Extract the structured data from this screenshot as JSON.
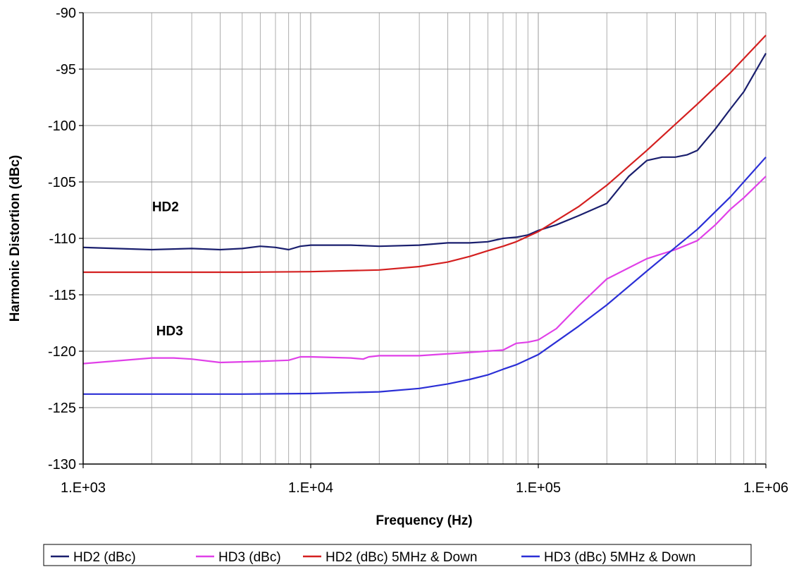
{
  "chart_data": {
    "type": "line",
    "xscale": "log",
    "xlabel": "Frequency (Hz)",
    "ylabel": "Harmonic Distortion (dBc)",
    "xlim": [
      1000,
      1000000
    ],
    "ylim": [
      -130,
      -90
    ],
    "y_ticks": [
      "-90",
      "-95",
      "-100",
      "-105",
      "-110",
      "-115",
      "-120",
      "-125",
      "-130"
    ],
    "y_tick_values": [
      -90,
      -95,
      -100,
      -105,
      -110,
      -115,
      -120,
      -125,
      -130
    ],
    "x_ticks": [
      "1.E+03",
      "1.E+04",
      "1.E+05",
      "1.E+06"
    ],
    "x_tick_values": [
      1000,
      10000,
      100000,
      1000000
    ],
    "grid": true,
    "legend_position": "bottom",
    "annotations": [
      {
        "text": "HD2",
        "x": 2300,
        "y": -107.6
      },
      {
        "text": "HD3",
        "x": 2400,
        "y": -118.6
      }
    ],
    "series": [
      {
        "name": "HD2 (dBc)",
        "color": "#1a1f6e",
        "x": [
          1000,
          2000,
          3000,
          4000,
          5000,
          6000,
          7000,
          8000,
          9000,
          10000,
          15000,
          20000,
          30000,
          40000,
          50000,
          60000,
          70000,
          80000,
          90000,
          100000,
          120000,
          150000,
          200000,
          250000,
          300000,
          350000,
          400000,
          450000,
          500000,
          600000,
          700000,
          800000,
          1000000
        ],
        "y": [
          -110.8,
          -111.0,
          -110.9,
          -111.0,
          -110.9,
          -110.7,
          -110.8,
          -111.0,
          -110.7,
          -110.6,
          -110.6,
          -110.7,
          -110.6,
          -110.4,
          -110.4,
          -110.3,
          -110.0,
          -109.9,
          -109.7,
          -109.3,
          -108.8,
          -108.0,
          -106.9,
          -104.5,
          -103.1,
          -102.8,
          -102.8,
          -102.6,
          -102.2,
          -100.3,
          -98.5,
          -97.0,
          -93.6
        ]
      },
      {
        "name": "HD3 (dBc)",
        "color": "#e040e8",
        "x": [
          1000,
          2000,
          2500,
          3000,
          4000,
          6000,
          8000,
          9000,
          10000,
          15000,
          17000,
          18000,
          20000,
          30000,
          50000,
          70000,
          80000,
          90000,
          100000,
          120000,
          150000,
          200000,
          300000,
          400000,
          500000,
          600000,
          700000,
          800000,
          1000000
        ],
        "y": [
          -121.1,
          -120.6,
          -120.6,
          -120.7,
          -121.0,
          -120.9,
          -120.8,
          -120.5,
          -120.5,
          -120.6,
          -120.7,
          -120.5,
          -120.4,
          -120.4,
          -120.1,
          -119.9,
          -119.3,
          -119.2,
          -119.0,
          -118.0,
          -116.0,
          -113.6,
          -111.8,
          -111.0,
          -110.2,
          -108.8,
          -107.4,
          -106.4,
          -104.5
        ]
      },
      {
        "name": "HD2 (dBc) 5MHz & Down",
        "color": "#d42020",
        "x": [
          1000,
          2000,
          5000,
          10000,
          20000,
          30000,
          40000,
          50000,
          60000,
          70000,
          80000,
          100000,
          150000,
          200000,
          300000,
          500000,
          700000,
          1000000
        ],
        "y": [
          -113.0,
          -113.0,
          -113.0,
          -112.95,
          -112.8,
          -112.5,
          -112.1,
          -111.6,
          -111.1,
          -110.7,
          -110.3,
          -109.4,
          -107.2,
          -105.3,
          -102.2,
          -98.1,
          -95.3,
          -92.0
        ]
      },
      {
        "name": "HD3 (dBc) 5MHz & Down",
        "color": "#2b2fd6",
        "x": [
          1000,
          2000,
          5000,
          10000,
          20000,
          30000,
          40000,
          50000,
          60000,
          70000,
          80000,
          100000,
          150000,
          200000,
          300000,
          400000,
          500000,
          700000,
          1000000
        ],
        "y": [
          -123.8,
          -123.8,
          -123.8,
          -123.75,
          -123.6,
          -123.3,
          -122.9,
          -122.5,
          -122.1,
          -121.6,
          -121.2,
          -120.3,
          -117.8,
          -115.9,
          -112.9,
          -110.8,
          -109.2,
          -106.3,
          -102.8
        ]
      }
    ]
  }
}
